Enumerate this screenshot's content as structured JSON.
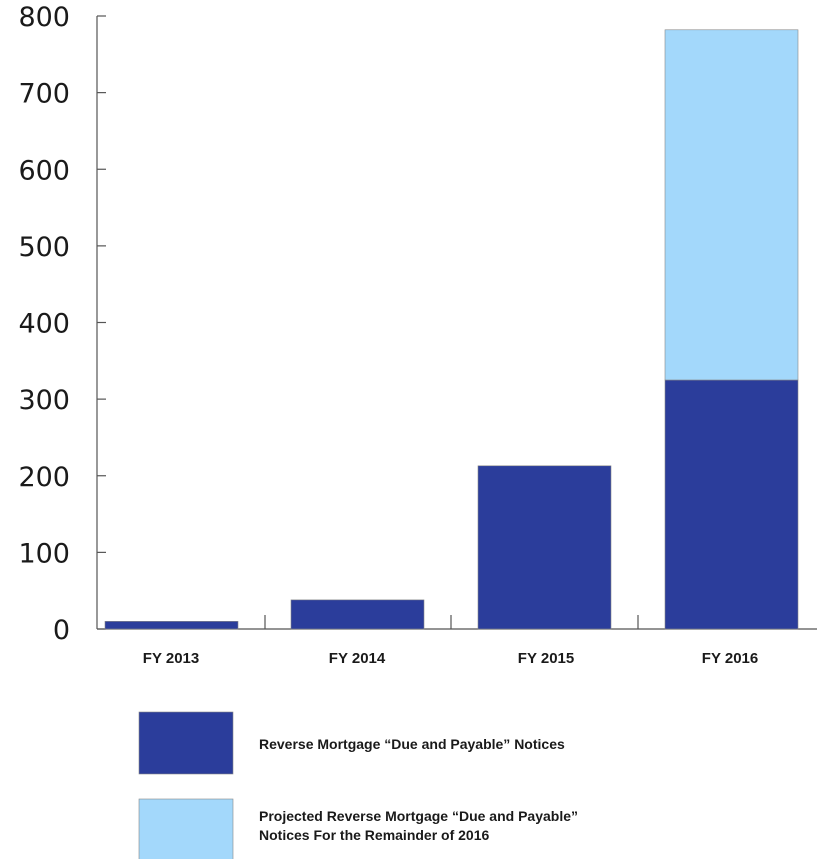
{
  "chart_data": {
    "type": "bar",
    "stacked": true,
    "categories": [
      "FY 2013",
      "FY 2014",
      "FY 2015",
      "FY 2016"
    ],
    "series": [
      {
        "name": "Reverse Mortgage “Due and Payable” Notices",
        "values": [
          10,
          38,
          213,
          325
        ],
        "color": "#2b3d9b"
      },
      {
        "name": "Projected Reverse Mortgage “Due and Payable” Notices For the Remainder of 2016",
        "legend_lines": [
          "Projected Reverse Mortgage “Due and Payable”",
          " Notices For the Remainder of 2016"
        ],
        "values": [
          0,
          0,
          0,
          457
        ],
        "color": "#a3d8fb"
      }
    ],
    "yticks": [
      0,
      100,
      200,
      300,
      400,
      500,
      600,
      700,
      800
    ],
    "ylim": [
      0,
      800
    ],
    "title": "",
    "xlabel": "",
    "ylabel": "",
    "grid": false,
    "legend_position": "bottom"
  }
}
